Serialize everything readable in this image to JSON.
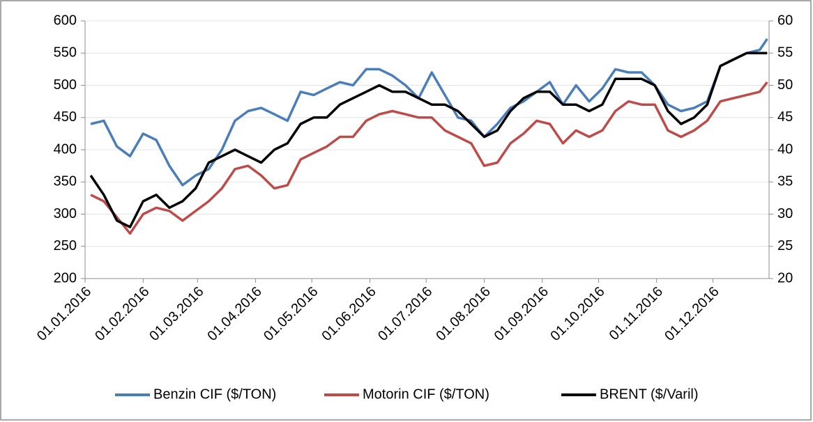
{
  "chart_data": {
    "type": "line",
    "x": [
      "04.01.2016",
      "11.01.2016",
      "18.01.2016",
      "25.01.2016",
      "01.02.2016",
      "08.02.2016",
      "15.02.2016",
      "22.02.2016",
      "29.02.2016",
      "07.03.2016",
      "14.03.2016",
      "21.03.2016",
      "28.03.2016",
      "04.04.2016",
      "11.04.2016",
      "18.04.2016",
      "25.04.2016",
      "02.05.2016",
      "09.05.2016",
      "16.05.2016",
      "23.05.2016",
      "30.05.2016",
      "06.06.2016",
      "13.06.2016",
      "20.06.2016",
      "27.06.2016",
      "04.07.2016",
      "11.07.2016",
      "18.07.2016",
      "25.07.2016",
      "01.08.2016",
      "08.08.2016",
      "15.08.2016",
      "22.08.2016",
      "29.08.2016",
      "05.09.2016",
      "12.09.2016",
      "19.09.2016",
      "26.09.2016",
      "03.10.2016",
      "10.10.2016",
      "17.10.2016",
      "24.10.2016",
      "31.10.2016",
      "07.11.2016",
      "14.11.2016",
      "21.11.2016",
      "28.11.2016",
      "05.12.2016",
      "12.12.2016",
      "19.12.2016",
      "26.12.2016",
      "30.12.2016"
    ],
    "series": [
      {
        "name": "Benzin CIF ($/TON)",
        "color": "#4a7ebb",
        "values": [
          440,
          445,
          405,
          390,
          425,
          415,
          375,
          345,
          360,
          370,
          400,
          445,
          460,
          465,
          455,
          445,
          490,
          485,
          495,
          505,
          500,
          525,
          525,
          515,
          500,
          480,
          520,
          485,
          450,
          445,
          420,
          440,
          465,
          475,
          490,
          505,
          470,
          500,
          475,
          495,
          525,
          520,
          520,
          500,
          470,
          460,
          465,
          475,
          530,
          540,
          550,
          555,
          572
        ]
      },
      {
        "name": "Motorin CIF ($/TON)",
        "color": "#be4b48",
        "values": [
          330,
          320,
          295,
          270,
          300,
          310,
          305,
          290,
          305,
          320,
          340,
          370,
          375,
          360,
          340,
          345,
          385,
          395,
          405,
          420,
          420,
          445,
          455,
          460,
          455,
          450,
          450,
          430,
          420,
          410,
          375,
          380,
          410,
          425,
          445,
          440,
          410,
          430,
          420,
          430,
          460,
          475,
          470,
          470,
          430,
          420,
          430,
          445,
          475,
          480,
          485,
          490,
          505
        ]
      },
      {
        "name": "BRENT ($/Varil)",
        "color": "#000000",
        "axis": "y2",
        "values": [
          36,
          33,
          29,
          28,
          32,
          33,
          31,
          32,
          34,
          38,
          39,
          40,
          39,
          38,
          40,
          41,
          44,
          45,
          45,
          47,
          48,
          49,
          50,
          49,
          49,
          48,
          47,
          47,
          46,
          44,
          42,
          43,
          46,
          48,
          49,
          49,
          47,
          47,
          46,
          47,
          51,
          51,
          51,
          50,
          46,
          44,
          45,
          47,
          53,
          54,
          55,
          55,
          55
        ]
      }
    ],
    "xlim": [
      "01.01.2016",
      "31.12.2016"
    ],
    "xticks": [
      "01.01.2016",
      "01.02.2016",
      "01.03.2016",
      "01.04.2016",
      "01.05.2016",
      "01.06.2016",
      "01.07.2016",
      "01.08.2016",
      "01.09.2016",
      "01.10.2016",
      "01.11.2016",
      "01.12.2016"
    ],
    "ylim": [
      200,
      600
    ],
    "yticks": [
      200,
      250,
      300,
      350,
      400,
      450,
      500,
      550,
      600
    ],
    "y2lim": [
      20,
      60
    ],
    "y2ticks": [
      20,
      25,
      30,
      35,
      40,
      45,
      50,
      55,
      60
    ],
    "grid": true,
    "legend": "bottom"
  }
}
